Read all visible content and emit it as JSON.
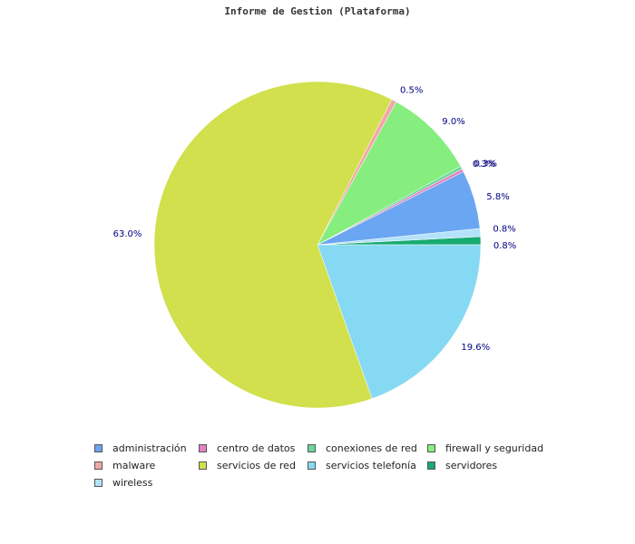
{
  "chart_data": {
    "type": "pie",
    "title": "Informe de Gestion (Plataforma)",
    "slices": [
      {
        "name": "administración",
        "value": 5.8,
        "label": "5.8%",
        "color": "#6aa6f2"
      },
      {
        "name": "centro de datos",
        "value": 0.3,
        "label": "0.3%",
        "color": "#e582c2"
      },
      {
        "name": "conexiones de red",
        "value": 0.3,
        "label": "0.3%",
        "color": "#6bd69b"
      },
      {
        "name": "firewall y seguridad",
        "value": 9.0,
        "label": "9.0%",
        "color": "#86ee7e"
      },
      {
        "name": "malware",
        "value": 0.5,
        "label": "0.5%",
        "color": "#f2a7a9"
      },
      {
        "name": "servicios de red",
        "value": 63.0,
        "label": "63.0%",
        "color": "#d1e04c"
      },
      {
        "name": "servicios telefonía",
        "value": 19.6,
        "label": "19.6%",
        "color": "#86d9f2"
      },
      {
        "name": "servidores",
        "value": 0.8,
        "label": "0.8%",
        "color": "#17ab72"
      },
      {
        "name": "wireless",
        "value": 0.8,
        "label": "0.8%",
        "color": "#b4e2fa"
      }
    ],
    "drawing_order": [
      "servidores",
      "wireless",
      "administración",
      "centro de datos",
      "conexiones de red",
      "firewall y seguridad",
      "malware",
      "servicios de red",
      "servicios telefonía"
    ],
    "start_direction": "clockwise from 3 o'clock, counter-clockwise sweep",
    "legend_position": "bottom",
    "legend_columns": 4
  }
}
